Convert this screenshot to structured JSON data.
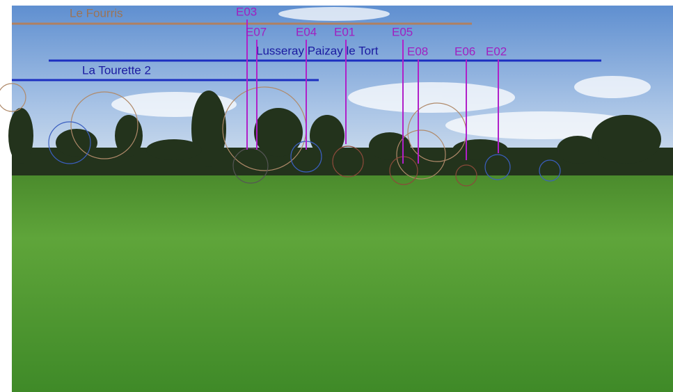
{
  "wind_farms": [
    {
      "label": "Le Fourris"
    },
    {
      "label": "Lusseray Paizay le Tort"
    },
    {
      "label": "La Tourette 2"
    }
  ],
  "turbines": [
    {
      "label": "E03"
    },
    {
      "label": "E07"
    },
    {
      "label": "E04"
    },
    {
      "label": "E01"
    },
    {
      "label": "E05"
    },
    {
      "label": "E08"
    },
    {
      "label": "E06"
    },
    {
      "label": "E02"
    }
  ]
}
